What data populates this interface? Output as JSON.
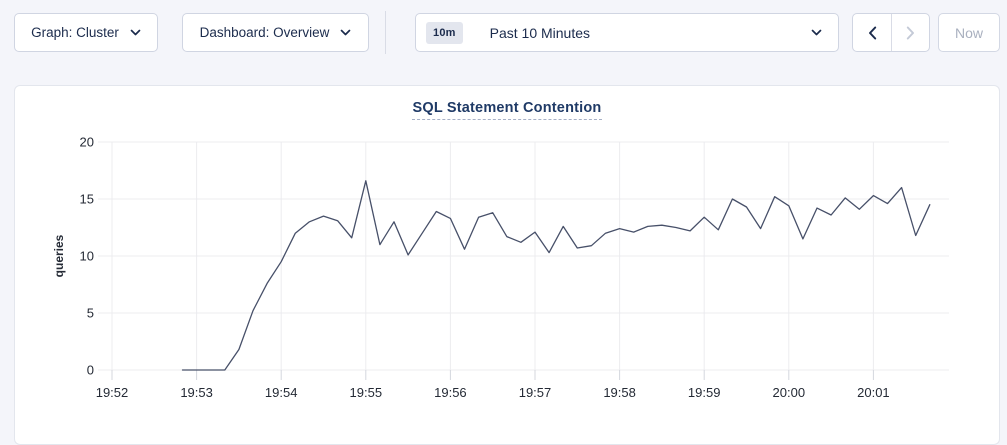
{
  "toolbar": {
    "graph_dropdown_label": "Graph: Cluster",
    "dashboard_dropdown_label": "Dashboard: Overview",
    "time_range_badge": "10m",
    "time_range_label": "Past 10 Minutes",
    "now_label": "Now"
  },
  "chart_data": {
    "type": "line",
    "title": "SQL Statement Contention",
    "xlabel": "",
    "ylabel": "queries",
    "ylim": [
      0,
      20
    ],
    "yticks": [
      0,
      5,
      10,
      15,
      20
    ],
    "xticks": [
      "19:52",
      "19:53",
      "19:54",
      "19:55",
      "19:56",
      "19:57",
      "19:58",
      "19:59",
      "20:00",
      "20:01"
    ],
    "x_tick_interval_seconds": 60,
    "grid": true,
    "legend_position": "none",
    "series": [
      {
        "name": "queries",
        "start_time": "19:52:50",
        "interval_seconds": 10,
        "end_time": "20:01:40",
        "values": [
          0,
          0,
          0,
          0,
          1.8,
          5.2,
          7.6,
          9.5,
          12.0,
          13.0,
          13.5,
          13.1,
          11.6,
          16.6,
          11.0,
          13.0,
          10.1,
          12.0,
          13.9,
          13.3,
          10.6,
          13.4,
          13.8,
          11.7,
          11.2,
          12.1,
          10.3,
          12.6,
          10.7,
          10.9,
          12.0,
          12.4,
          12.1,
          12.6,
          12.7,
          12.5,
          12.2,
          13.4,
          12.3,
          15.0,
          14.3,
          12.4,
          15.2,
          14.4,
          11.5,
          14.2,
          13.6,
          15.1,
          14.1,
          15.3,
          14.6,
          16.0,
          11.8,
          14.5
        ]
      }
    ],
    "colors": {
      "line": "#475069",
      "grid": "#ececef",
      "tick": "#d4d7de",
      "axis_text": "#242a35",
      "title": "#1f3a66"
    }
  }
}
